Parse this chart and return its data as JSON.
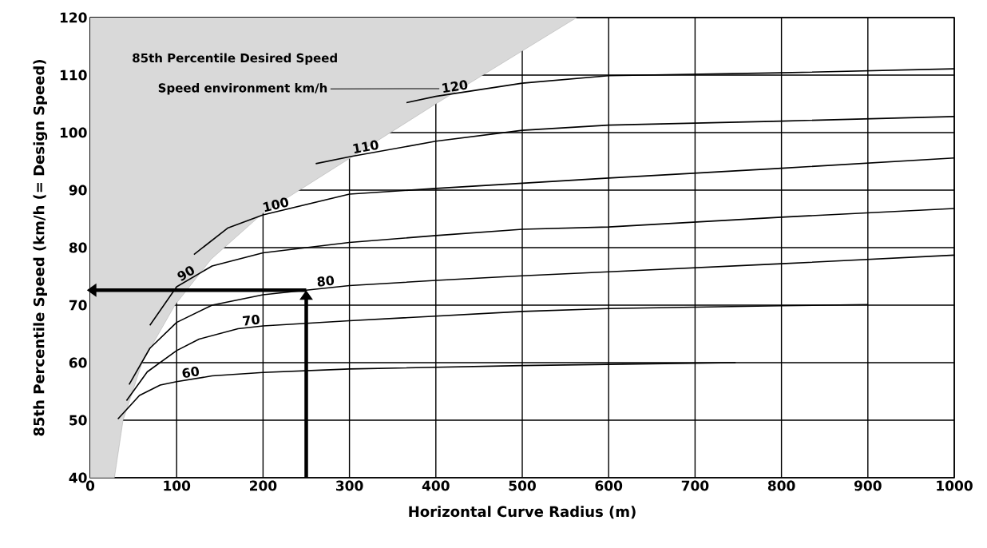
{
  "chart_data": {
    "type": "line",
    "xlabel": "Horizontal Curve Radius (m)",
    "ylabel": "85th Percentile Speed (km/h (= Design Speed)",
    "annotations": [
      "85th Percentile Desired Speed",
      "Speed environment km/h"
    ],
    "xlim": [
      0,
      1000
    ],
    "ylim": [
      40,
      120
    ],
    "xticks": [
      0,
      100,
      200,
      300,
      400,
      500,
      600,
      700,
      800,
      900,
      1000
    ],
    "yticks": [
      40,
      50,
      60,
      70,
      80,
      90,
      100,
      110,
      120
    ],
    "grid": true,
    "series": [
      {
        "color": "#a8a8a8",
        "x": [
          0,
          28,
          38,
          60,
          98,
          140,
          200,
          300,
          400,
          563
        ],
        "values": [
          40,
          40,
          50,
          60,
          70,
          78,
          86,
          95.5,
          105,
          120
        ]
      },
      {
        "name": "60",
        "color": "#000000",
        "x": [
          32,
          57,
          81,
          100,
          141,
          200,
          300,
          400,
          500,
          600,
          747
        ],
        "values": [
          50.2,
          54.3,
          56.1,
          56.7,
          57.7,
          58.3,
          58.9,
          59.2,
          59.5,
          59.7,
          60
        ]
      },
      {
        "name": "70",
        "color": "#000000",
        "x": [
          42,
          66,
          100,
          126,
          171,
          200,
          300,
          400,
          500,
          600,
          800,
          900
        ],
        "values": [
          53.4,
          58.4,
          62.1,
          64.1,
          65.9,
          66.4,
          67.3,
          68.1,
          68.9,
          69.4,
          69.9,
          70.1
        ]
      },
      {
        "name": "80",
        "color": "#000000",
        "x": [
          45,
          69,
          100,
          141,
          200,
          300,
          400,
          500,
          600,
          800,
          1000
        ],
        "values": [
          56.2,
          62.5,
          67,
          70,
          71.8,
          73.4,
          74.3,
          75.1,
          75.8,
          77.2,
          78.7
        ]
      },
      {
        "name": "90",
        "color": "#000000",
        "x": [
          69,
          100,
          141,
          200,
          300,
          400,
          500,
          600,
          800,
          1000
        ],
        "values": [
          66.5,
          73.2,
          76.8,
          79.1,
          80.9,
          82.1,
          83.2,
          83.6,
          85.3,
          86.8
        ]
      },
      {
        "name": "100",
        "color": "#000000",
        "x": [
          120,
          159,
          200,
          300,
          400,
          500,
          600,
          800,
          1000
        ],
        "values": [
          78.8,
          83.4,
          85.7,
          89.3,
          90.3,
          91.2,
          92.1,
          93.8,
          95.6
        ]
      },
      {
        "name": "110",
        "color": "#000000",
        "x": [
          261,
          300,
          400,
          500,
          600,
          800,
          1000
        ],
        "values": [
          94.6,
          95.8,
          98.5,
          100.4,
          101.3,
          102,
          102.8
        ]
      },
      {
        "name": "120",
        "color": "#000000",
        "x": [
          366,
          400,
          500,
          600,
          800,
          1000
        ],
        "values": [
          105.2,
          106.3,
          108.6,
          109.9,
          110.4,
          111.1
        ]
      }
    ]
  }
}
